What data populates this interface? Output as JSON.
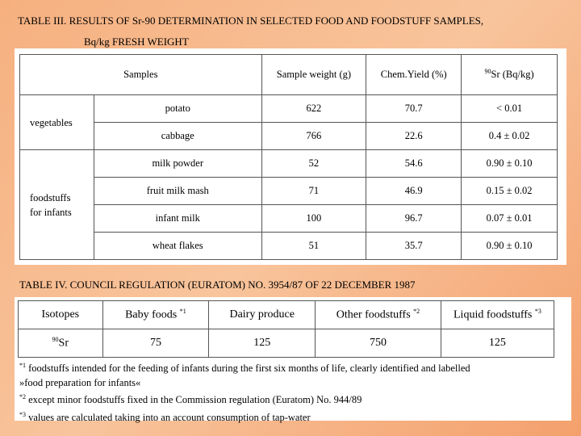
{
  "table3": {
    "title_line1": "TABLE III. RESULTS OF Sr-90 DETERMINATION IN SELECTED FOOD AND FOODSTUFF SAMPLES,",
    "title_line2": "Bq/kg FRESH WEIGHT",
    "headers": {
      "samples": "Samples",
      "weight": "Sample weight (g)",
      "yield": "Chem.Yield (%)",
      "sr_sup": "90",
      "sr": "Sr (Bq/kg)"
    },
    "group1": "vegetables",
    "group2_line1": "foodstuffs",
    "group2_line2": "for infants",
    "rows": [
      {
        "name": "potato",
        "weight": "622",
        "yield": "70.7",
        "sr": "< 0.01"
      },
      {
        "name": "cabbage",
        "weight": "766",
        "yield": "22.6",
        "sr": "0.4 ± 0.02"
      },
      {
        "name": "milk powder",
        "weight": "52",
        "yield": "54.6",
        "sr": "0.90 ± 0.10"
      },
      {
        "name": "fruit milk mash",
        "weight": "71",
        "yield": "46.9",
        "sr": "0.15 ± 0.02"
      },
      {
        "name": "infant milk",
        "weight": "100",
        "yield": "96.7",
        "sr": "0.07 ± 0.01"
      },
      {
        "name": "wheat flakes",
        "weight": "51",
        "yield": "35.7",
        "sr": "0.90 ± 0.10"
      }
    ]
  },
  "table4": {
    "title": "TABLE IV. COUNCIL REGULATION (EURATOM) NO. 3954/87 OF 22 DECEMBER 1987",
    "headers": {
      "isotopes": "Isotopes",
      "baby": "Baby foods",
      "baby_sup": "*1",
      "dairy": "Dairy produce",
      "other": "Other foodstuffs",
      "other_sup": "*2",
      "liquid": "Liquid foodstuffs",
      "liquid_sup": "*3"
    },
    "row": {
      "iso_sup": "90",
      "iso": "Sr",
      "baby": "75",
      "dairy": "125",
      "other": "750",
      "liquid": "125"
    },
    "notes": {
      "n1_mark": "*1",
      "n1_line1": " foodstuffs intended for the feeding of infants during the first six months of life, clearly identified  and labelled",
      "n1_line2": "»food preparation for infants«",
      "n2_mark": "*2",
      "n2": "  except minor foodstuffs fixed in the Commission regulation (Euratom) No. 944/89",
      "n3_mark": "*3",
      "n3": "  values are calculated taking into an account consumption of tap-water"
    }
  }
}
